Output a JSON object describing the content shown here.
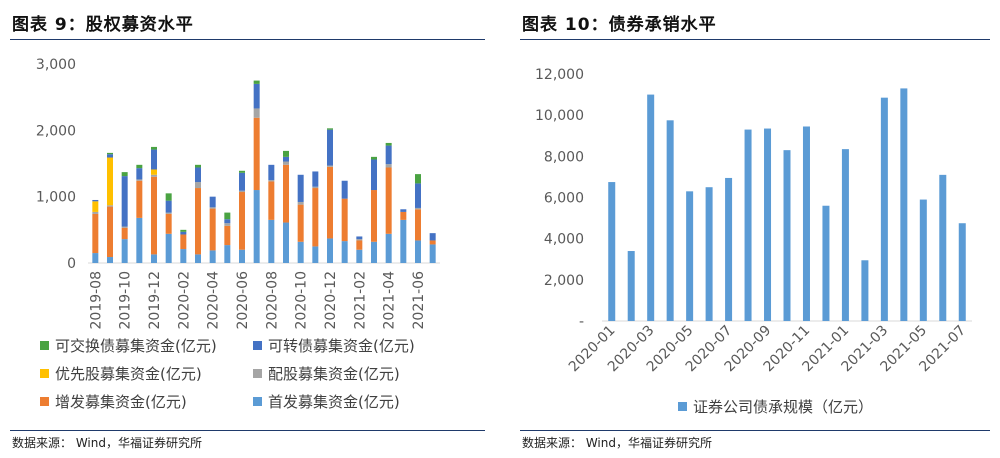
{
  "left": {
    "title": "图表 9：股权募资水平",
    "source": "数据来源：  Wind，华福证券研究所"
  },
  "right": {
    "title": "图表 10：债券承销水平",
    "source": "数据来源：  Wind，华福证券研究所"
  },
  "colors": {
    "exchangeable": "#4aa342",
    "convertible": "#4472c4",
    "preferred": "#ffc000",
    "allotment": "#a5a5a5",
    "placement": "#ed7d31",
    "ipo": "#5b9bd5",
    "bond": "#5b9bd5",
    "rule": "#1f3a6b"
  },
  "chart_data": [
    {
      "type": "bar",
      "stacked": true,
      "ylim": [
        0,
        3000
      ],
      "yticks": [
        0,
        1000,
        2000,
        3000
      ],
      "ytick_labels": [
        "0",
        "1,000",
        "2,000",
        "3,000"
      ],
      "categories": [
        "2019-08",
        "2019-09",
        "2019-10",
        "2019-11",
        "2019-12",
        "2020-01",
        "2020-02",
        "2020-03",
        "2020-04",
        "2020-05",
        "2020-06",
        "2020-07",
        "2020-08",
        "2020-09",
        "2020-10",
        "2020-11",
        "2020-12",
        "2021-01",
        "2021-02",
        "2021-03",
        "2021-04",
        "2021-05",
        "2021-06",
        "2021-07"
      ],
      "xtick_labels": [
        "2019-08",
        "2019-10",
        "2019-12",
        "2020-02",
        "2020-04",
        "2020-06",
        "2020-08",
        "2020-10",
        "2020-12",
        "2021-02",
        "2021-04",
        "2021-06"
      ],
      "legend_position": "bottom",
      "series": [
        {
          "key": "ipo",
          "name": "首发募集资金(亿元)",
          "values": [
            150,
            90,
            360,
            680,
            130,
            440,
            210,
            130,
            190,
            270,
            200,
            1100,
            650,
            610,
            320,
            250,
            370,
            330,
            200,
            320,
            440,
            650,
            340,
            280
          ]
        },
        {
          "key": "placement",
          "name": "增发募集资金(亿元)",
          "values": [
            590,
            760,
            170,
            560,
            1170,
            300,
            220,
            1000,
            630,
            290,
            870,
            1090,
            580,
            870,
            560,
            880,
            1080,
            640,
            140,
            780,
            1000,
            120,
            470,
            60
          ]
        },
        {
          "key": "allotment",
          "name": "配股募集资金(亿元)",
          "values": [
            30,
            20,
            20,
            20,
            30,
            20,
            0,
            90,
            20,
            40,
            20,
            140,
            20,
            50,
            40,
            20,
            20,
            0,
            20,
            0,
            50,
            0,
            20,
            0
          ]
        },
        {
          "key": "preferred",
          "name": "优先股募集资金(亿元)",
          "values": [
            160,
            720,
            0,
            0,
            80,
            0,
            0,
            0,
            0,
            0,
            0,
            0,
            0,
            0,
            0,
            0,
            0,
            0,
            0,
            0,
            0,
            0,
            0,
            0
          ]
        },
        {
          "key": "convertible",
          "name": "可转债募集资金(亿元)",
          "values": [
            20,
            50,
            760,
            170,
            300,
            180,
            40,
            220,
            160,
            60,
            270,
            370,
            230,
            70,
            410,
            230,
            540,
            270,
            40,
            460,
            280,
            40,
            370,
            110
          ]
        },
        {
          "key": "exchangeable",
          "name": "可交换债募集资金(亿元)",
          "values": [
            0,
            20,
            60,
            50,
            40,
            110,
            30,
            40,
            0,
            100,
            30,
            50,
            0,
            90,
            0,
            0,
            20,
            0,
            0,
            40,
            40,
            0,
            140,
            0
          ]
        }
      ],
      "legend": [
        {
          "key": "exchangeable",
          "label": "可交换债募集资金(亿元)"
        },
        {
          "key": "convertible",
          "label": "可转债募集资金(亿元)"
        },
        {
          "key": "preferred",
          "label": "优先股募集资金(亿元)"
        },
        {
          "key": "allotment",
          "label": "配股募集资金(亿元)"
        },
        {
          "key": "placement",
          "label": "增发募集资金(亿元)"
        },
        {
          "key": "ipo",
          "label": "首发募集资金(亿元)"
        }
      ]
    },
    {
      "type": "bar",
      "ylim": [
        0,
        12000
      ],
      "yticks": [
        0,
        2000,
        4000,
        6000,
        8000,
        10000,
        12000
      ],
      "ytick_labels": [
        "-",
        "2,000",
        "4,000",
        "6,000",
        "8,000",
        "10,000",
        "12,000"
      ],
      "categories": [
        "2020-01",
        "2020-02",
        "2020-03",
        "2020-04",
        "2020-05",
        "2020-06",
        "2020-07",
        "2020-08",
        "2020-09",
        "2020-10",
        "2020-11",
        "2020-12",
        "2021-01",
        "2021-02",
        "2021-03",
        "2021-04",
        "2021-05",
        "2021-06",
        "2021-07"
      ],
      "xtick_labels": [
        "2020-01",
        "2020-03",
        "2020-05",
        "2020-07",
        "2020-09",
        "2020-11",
        "2021-01",
        "2021-03",
        "2021-05",
        "2021-07"
      ],
      "legend_position": "bottom",
      "series": [
        {
          "key": "bond",
          "name": "证券公司债承规模（亿元）",
          "values": [
            6750,
            3400,
            11000,
            9750,
            6300,
            6500,
            6950,
            9300,
            9350,
            8300,
            9450,
            5600,
            8350,
            2950,
            10850,
            11300,
            5900,
            7100,
            4750
          ]
        }
      ],
      "legend": [
        {
          "key": "bond",
          "label": "证券公司债承规模（亿元）"
        }
      ]
    }
  ]
}
